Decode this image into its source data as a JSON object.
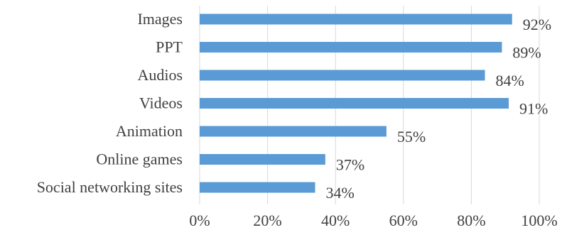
{
  "chart_data": {
    "type": "bar",
    "orientation": "horizontal",
    "title": "",
    "xlabel": "",
    "ylabel": "",
    "categories": [
      "Images",
      "PPT",
      "Audios",
      "Videos",
      "Animation",
      "Online games",
      "Social networking sites"
    ],
    "values": [
      92,
      89,
      84,
      91,
      55,
      37,
      34
    ],
    "data_labels": [
      "92%",
      "89%",
      "84%",
      "91%",
      "55%",
      "37%",
      "34%"
    ],
    "xlim": [
      0,
      100
    ],
    "x_ticks": [
      0,
      20,
      40,
      60,
      80,
      100
    ],
    "x_tick_labels": [
      "0%",
      "20%",
      "40%",
      "60%",
      "80%",
      "100%"
    ],
    "grid": true,
    "legend": "none",
    "bar_color": "#5b9bd5",
    "gridline_color": "#d9d9d9",
    "text_color": "#404040"
  }
}
